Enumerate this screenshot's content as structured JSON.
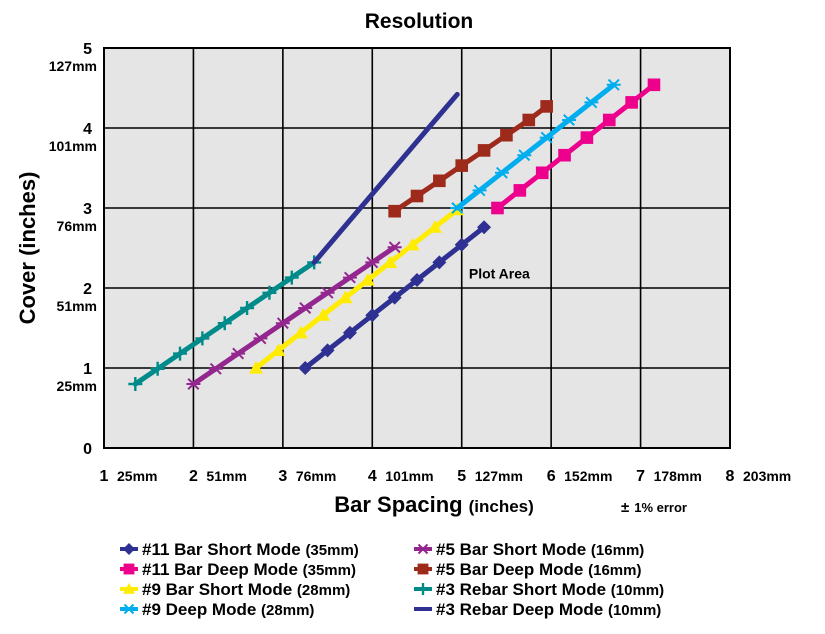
{
  "chart_data": {
    "type": "line",
    "title": "Resolution",
    "ylabel": "Cover (inches)",
    "xlabel": {
      "main": "Bar Spacing",
      "unit": "(inches)"
    },
    "xlim": [
      0,
      7
    ],
    "ylim": [
      0,
      5
    ],
    "grid": true,
    "legend_position": "bottom",
    "x_ticks": [
      {
        "value": 0,
        "label": "1",
        "mm": "25mm"
      },
      {
        "value": 1,
        "label": "2",
        "mm": "51mm"
      },
      {
        "value": 2,
        "label": "3",
        "mm": "76mm"
      },
      {
        "value": 3,
        "label": "4",
        "mm": "101mm"
      },
      {
        "value": 4,
        "label": "5",
        "mm": "127mm"
      },
      {
        "value": 5,
        "label": "6",
        "mm": "152mm"
      },
      {
        "value": 6,
        "label": "7",
        "mm": "178mm"
      },
      {
        "value": 7,
        "label": "8",
        "mm": "203mm"
      }
    ],
    "y_ticks": [
      {
        "value": 0,
        "label": "0",
        "mm": ""
      },
      {
        "value": 1,
        "label": "1",
        "mm": "25mm"
      },
      {
        "value": 2,
        "label": "2",
        "mm": "51mm"
      },
      {
        "value": 3,
        "label": "3",
        "mm": "76mm"
      },
      {
        "value": 4,
        "label": "4",
        "mm": "101mm"
      },
      {
        "value": 5,
        "label": "5",
        "mm": "127mm"
      }
    ],
    "annotations": [
      {
        "text": "Plot Area",
        "x": 4.08,
        "y": 2.18
      }
    ],
    "note": {
      "symbol": "±",
      "text": "1% error"
    },
    "series": [
      {
        "name": "#11 Bar Short Mode",
        "size": "(35mm)",
        "color": "#2e3192",
        "marker": "diamond",
        "x": [
          2.25,
          2.5,
          2.75,
          3.0,
          3.25,
          3.5,
          3.75,
          4.0,
          4.25
        ],
        "y": [
          1.0,
          1.22,
          1.44,
          1.66,
          1.88,
          2.1,
          2.32,
          2.54,
          2.76
        ]
      },
      {
        "name": "#11 Bar Deep Mode",
        "size": "(35mm)",
        "color": "#ec008c",
        "marker": "square",
        "x": [
          4.4,
          4.65,
          4.9,
          5.15,
          5.4,
          5.65,
          5.9,
          6.15
        ],
        "y": [
          3.0,
          3.22,
          3.44,
          3.66,
          3.88,
          4.1,
          4.32,
          4.54
        ]
      },
      {
        "name": "#9 Bar Short Mode",
        "size": "(28mm)",
        "color": "#ffec00",
        "marker": "triangle",
        "x": [
          1.7,
          1.95,
          2.2,
          2.45,
          2.7,
          2.95,
          3.2,
          3.45,
          3.7,
          3.95
        ],
        "y": [
          1.0,
          1.22,
          1.44,
          1.66,
          1.88,
          2.1,
          2.32,
          2.54,
          2.76,
          2.98
        ]
      },
      {
        "name": "#9 Deep Mode",
        "size": "(28mm)",
        "color": "#00aeef",
        "marker": "asterisk",
        "x": [
          3.95,
          4.2,
          4.45,
          4.7,
          4.95,
          5.2,
          5.45,
          5.7
        ],
        "y": [
          3.0,
          3.22,
          3.44,
          3.66,
          3.88,
          4.1,
          4.32,
          4.54
        ]
      },
      {
        "name": "#5 Bar Short Mode",
        "size": "(16mm)",
        "color": "#93278f",
        "marker": "asterisk",
        "x": [
          1.0,
          1.25,
          1.5,
          1.75,
          2.0,
          2.25,
          2.5,
          2.75,
          3.0,
          3.25
        ],
        "y": [
          0.8,
          0.99,
          1.18,
          1.37,
          1.56,
          1.75,
          1.94,
          2.13,
          2.32,
          2.51
        ]
      },
      {
        "name": "#5 Bar Deep Mode",
        "size": "(16mm)",
        "color": "#9e2a1b",
        "marker": "square",
        "x": [
          3.25,
          3.5,
          3.75,
          4.0,
          4.25,
          4.5,
          4.75,
          4.95
        ],
        "y": [
          2.96,
          3.15,
          3.34,
          3.53,
          3.72,
          3.91,
          4.1,
          4.27
        ]
      },
      {
        "name": "#3 Rebar Short Mode",
        "size": "(10mm)",
        "color": "#008b8b",
        "marker": "plus",
        "x": [
          0.35,
          0.6,
          0.85,
          1.1,
          1.35,
          1.6,
          1.85,
          2.1,
          2.35
        ],
        "y": [
          0.8,
          0.99,
          1.18,
          1.37,
          1.56,
          1.75,
          1.94,
          2.13,
          2.32
        ]
      },
      {
        "name": "#3 Rebar Deep Mode",
        "size": "(10mm)",
        "color": "#2e3192",
        "marker": "none",
        "x": [
          2.35,
          3.05,
          3.75,
          3.95
        ],
        "y": [
          2.32,
          3.24,
          4.16,
          4.42
        ]
      }
    ],
    "legend_order": [
      0,
      4,
      1,
      5,
      2,
      6,
      3,
      7
    ]
  }
}
